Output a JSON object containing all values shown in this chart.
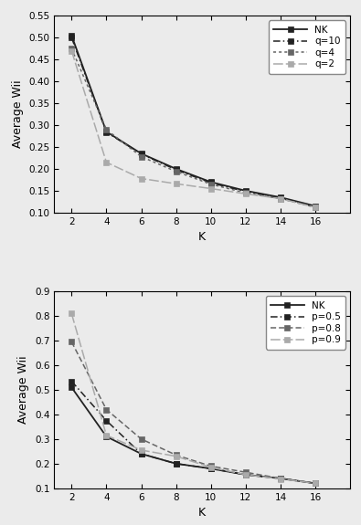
{
  "K": [
    2,
    4,
    6,
    8,
    10,
    12,
    14,
    16
  ],
  "top": {
    "ylim": [
      0.1,
      0.55
    ],
    "yticks": [
      0.1,
      0.15,
      0.2,
      0.25,
      0.3,
      0.35,
      0.4,
      0.45,
      0.5,
      0.55
    ],
    "ylabel": "Average Wii",
    "xlabel": "K",
    "series": [
      {
        "label": "NK",
        "values": [
          0.505,
          0.285,
          0.235,
          0.2,
          0.17,
          0.15,
          0.135,
          0.115
        ],
        "color": "#222222",
        "dashes": null,
        "lw": 1.3
      },
      {
        "label": "q=10",
        "values": [
          0.5,
          0.284,
          0.234,
          0.198,
          0.168,
          0.148,
          0.133,
          0.113
        ],
        "color": "#222222",
        "dashes": [
          5,
          2,
          1,
          2
        ],
        "lw": 1.1
      },
      {
        "label": "q=4",
        "values": [
          0.475,
          0.29,
          0.228,
          0.194,
          0.165,
          0.145,
          0.132,
          0.112
        ],
        "color": "#666666",
        "dashes": [
          2,
          2
        ],
        "lw": 1.1
      },
      {
        "label": "q=2",
        "values": [
          0.47,
          0.215,
          0.178,
          0.166,
          0.155,
          0.143,
          0.132,
          0.112
        ],
        "color": "#aaaaaa",
        "dashes": [
          7,
          2
        ],
        "lw": 1.1
      }
    ]
  },
  "bottom": {
    "ylim": [
      0.1,
      0.9
    ],
    "yticks": [
      0.1,
      0.2,
      0.3,
      0.4,
      0.5,
      0.6,
      0.7,
      0.8,
      0.9
    ],
    "ylabel": "Average Wii",
    "xlabel": "K",
    "series": [
      {
        "label": "NK",
        "values": [
          0.51,
          0.31,
          0.24,
          0.2,
          0.18,
          0.155,
          0.14,
          0.12
        ],
        "color": "#222222",
        "dashes": null,
        "lw": 1.3
      },
      {
        "label": "p=0.5",
        "values": [
          0.535,
          0.375,
          0.24,
          0.2,
          0.18,
          0.155,
          0.14,
          0.12
        ],
        "color": "#222222",
        "dashes": [
          5,
          2,
          1,
          2
        ],
        "lw": 1.1
      },
      {
        "label": "p=0.8",
        "values": [
          0.695,
          0.42,
          0.3,
          0.235,
          0.19,
          0.165,
          0.14,
          0.12
        ],
        "color": "#666666",
        "dashes": [
          4,
          2,
          4,
          2
        ],
        "lw": 1.1
      },
      {
        "label": "p=0.9",
        "values": [
          0.81,
          0.315,
          0.255,
          0.23,
          0.185,
          0.155,
          0.138,
          0.12
        ],
        "color": "#aaaaaa",
        "dashes": [
          7,
          2
        ],
        "lw": 1.1
      }
    ]
  },
  "xlim": [
    1,
    18
  ],
  "xticks": [
    2,
    4,
    6,
    8,
    10,
    12,
    14,
    16
  ],
  "background_color": "#ebebeb",
  "legend_fontsize": 7.5,
  "tick_fontsize": 7.5,
  "label_fontsize": 9,
  "marker_size": 4
}
